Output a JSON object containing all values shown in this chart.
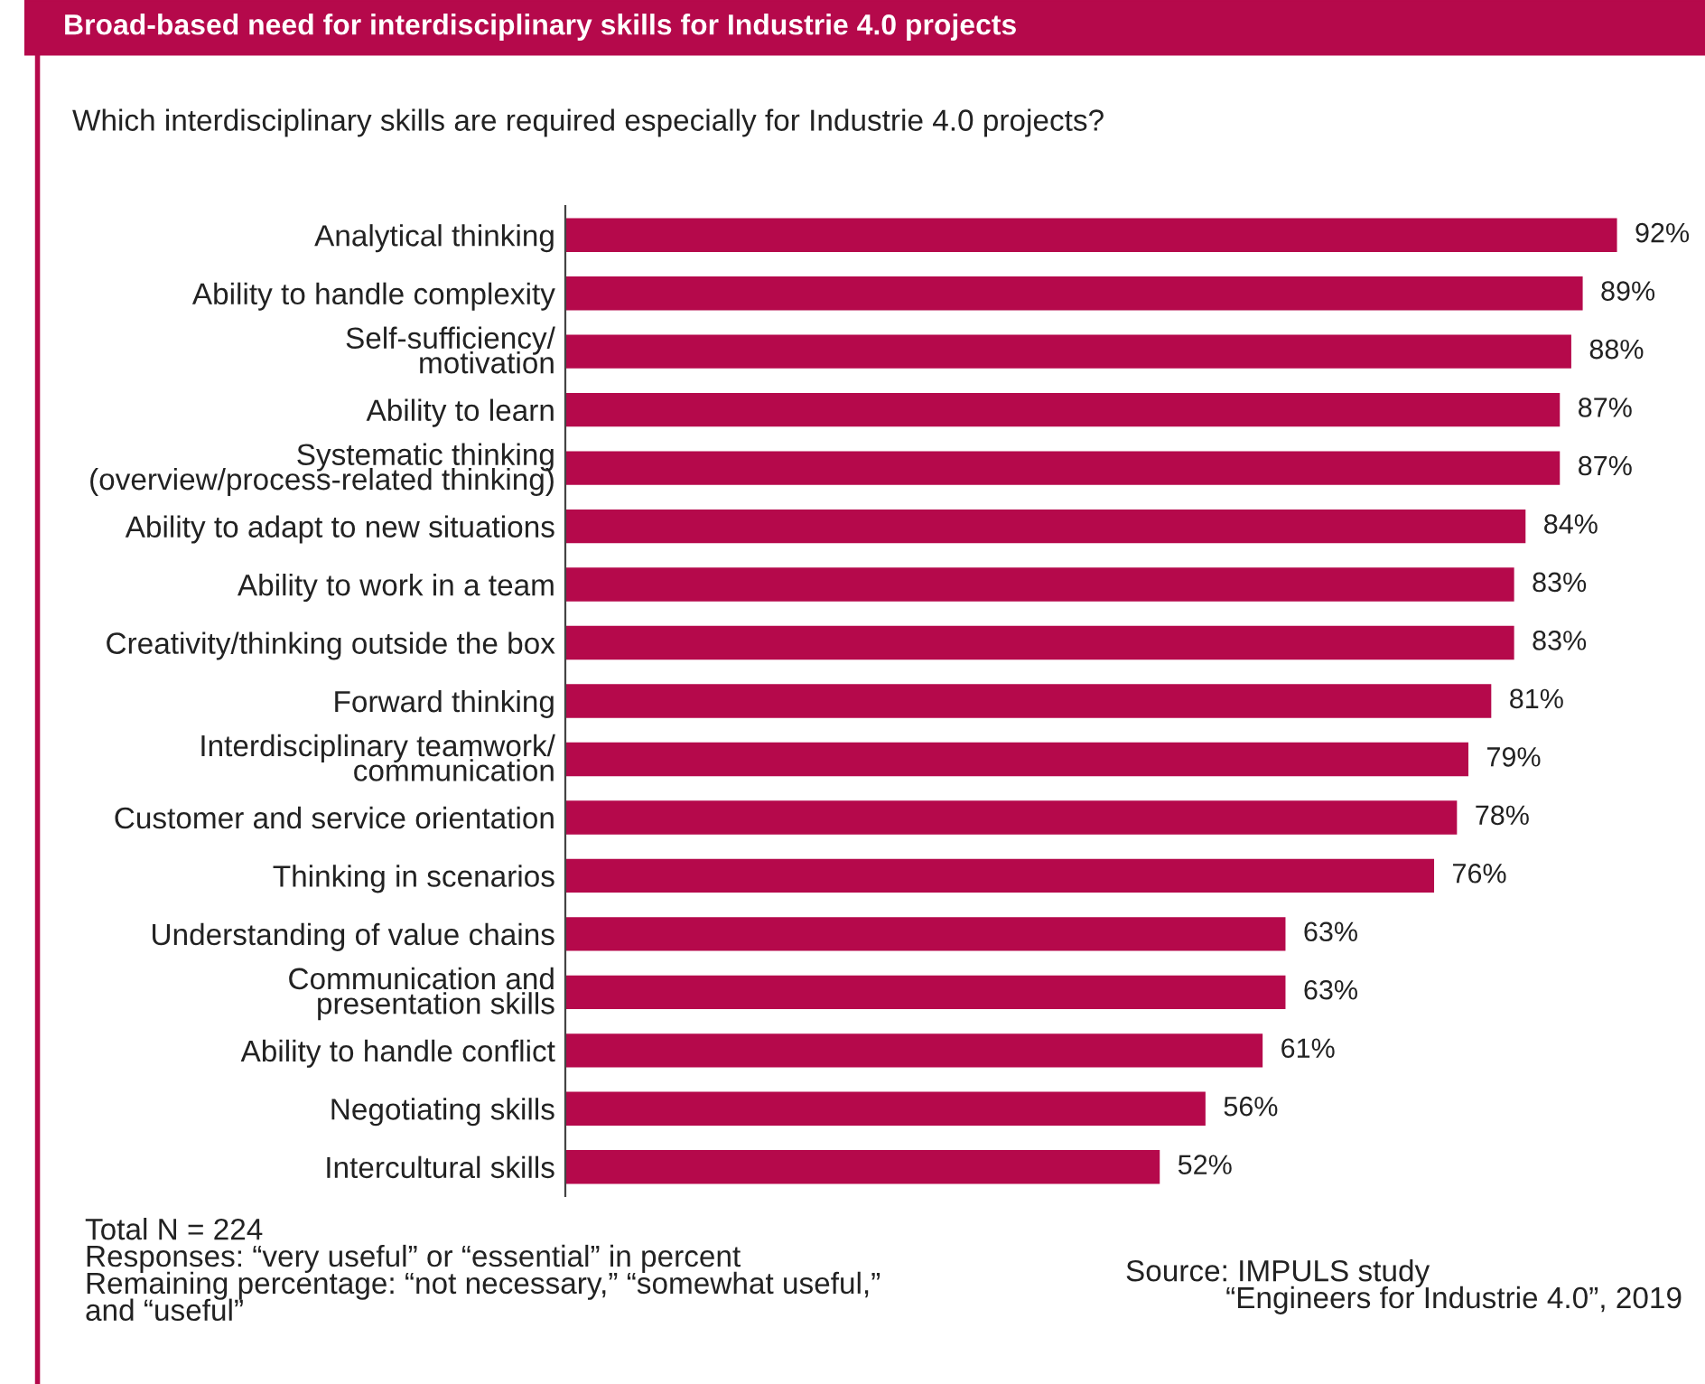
{
  "chart_data": {
    "type": "bar",
    "orientation": "horizontal",
    "title": "Broad-based need for interdisciplinary skills for Industrie 4.0 projects",
    "subtitle": "Which interdisciplinary skills are required especially for Industrie 4.0 projects?",
    "categories": [
      "Analytical thinking",
      "Ability to handle complexity",
      "Self-sufficiency/\nmotivation",
      "Ability to learn",
      "Systematic thinking\n(overview/process-related thinking)",
      "Ability to adapt to new situations",
      "Ability to work in a team",
      "Creativity/thinking outside the box",
      "Forward thinking",
      "Interdisciplinary teamwork/\ncommunication",
      "Customer and service orientation",
      "Thinking in scenarios",
      "Understanding of value chains",
      "Communication and\npresentation skills",
      "Ability to handle conflict",
      "Negotiating skills",
      "Intercultural skills"
    ],
    "values": [
      92,
      89,
      88,
      87,
      87,
      84,
      83,
      83,
      81,
      79,
      78,
      76,
      63,
      63,
      61,
      56,
      52
    ],
    "value_labels": [
      "92%",
      "89%",
      "88%",
      "87%",
      "87%",
      "84%",
      "83%",
      "83%",
      "81%",
      "79%",
      "78%",
      "76%",
      "63%",
      "63%",
      "61%",
      "56%",
      "52%"
    ],
    "color": "#b5094b",
    "grid": false,
    "legend": false,
    "annotations": [
      "Total N = 224\nResponses: “very useful” or “essential” in percent\nRemaining percentage: “not necessary,” “somewhat useful,”\nand “useful”",
      "Source: IMPULS study\n            “Engineers for Industrie 4.0”, 2019"
    ]
  }
}
